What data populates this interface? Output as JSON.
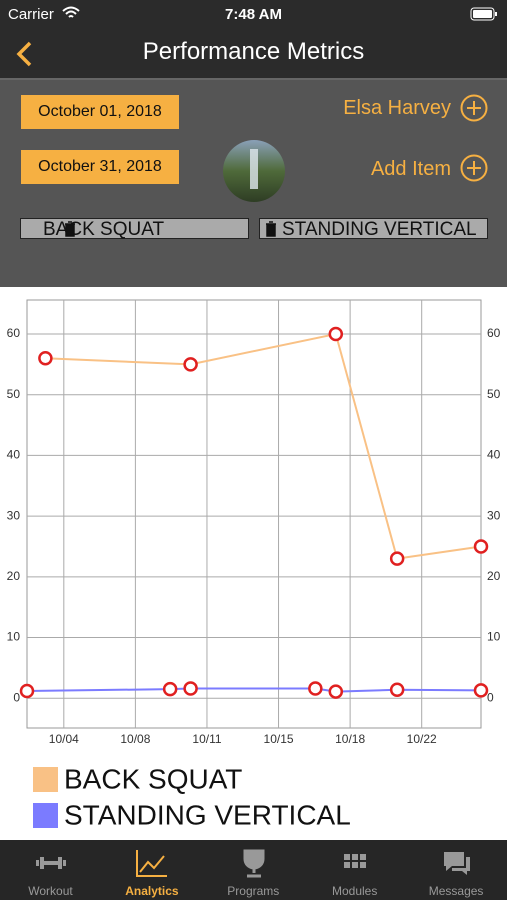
{
  "status_bar": {
    "carrier": "Carrier",
    "time": "7:48 AM"
  },
  "nav_bar": {
    "title": "Performance Metrics"
  },
  "controls": {
    "start_date": "October 01, 2018",
    "end_date": "October 31, 2018",
    "athlete": "Elsa Harvey",
    "add_item": "Add Item",
    "tags": [
      "BACK SQUAT",
      "STANDING VERTICAL"
    ]
  },
  "chart_data": {
    "type": "line",
    "series": [
      {
        "name": "BACK SQUAT",
        "color": "#f9c185",
        "x": [
          3.6,
          10.7,
          17.8,
          20.8,
          24.9
        ],
        "values": [
          56,
          55,
          60,
          23,
          25
        ]
      },
      {
        "name": "STANDING VERTICAL",
        "color": "#7b7bff",
        "x": [
          2.7,
          9.7,
          10.7,
          16.8,
          17.8,
          20.8,
          24.9
        ],
        "values": [
          1.2,
          1.5,
          1.6,
          1.6,
          1.1,
          1.4,
          1.3
        ]
      }
    ],
    "xlim": [
      2.7,
      24.9
    ],
    "xticks": [
      {
        "value": 4.5,
        "label": "10/04"
      },
      {
        "value": 8,
        "label": "10/08"
      },
      {
        "value": 11.5,
        "label": "10/11"
      },
      {
        "value": 15,
        "label": "10/15"
      },
      {
        "value": 18.5,
        "label": "10/18"
      },
      {
        "value": 22,
        "label": "10/22"
      }
    ],
    "ylim": [
      -4.9,
      65.6
    ],
    "yticks": [
      0,
      10,
      20,
      30,
      40,
      50,
      60
    ],
    "y2lim": [
      -4.9,
      65.6
    ],
    "y2ticks": [
      0,
      10,
      20,
      30,
      40,
      50,
      60
    ],
    "grid": true,
    "legend": "bottom"
  },
  "tab_bar": {
    "items": [
      "Workout",
      "Analytics",
      "Programs",
      "Modules",
      "Messages"
    ],
    "selected_index": 1
  }
}
